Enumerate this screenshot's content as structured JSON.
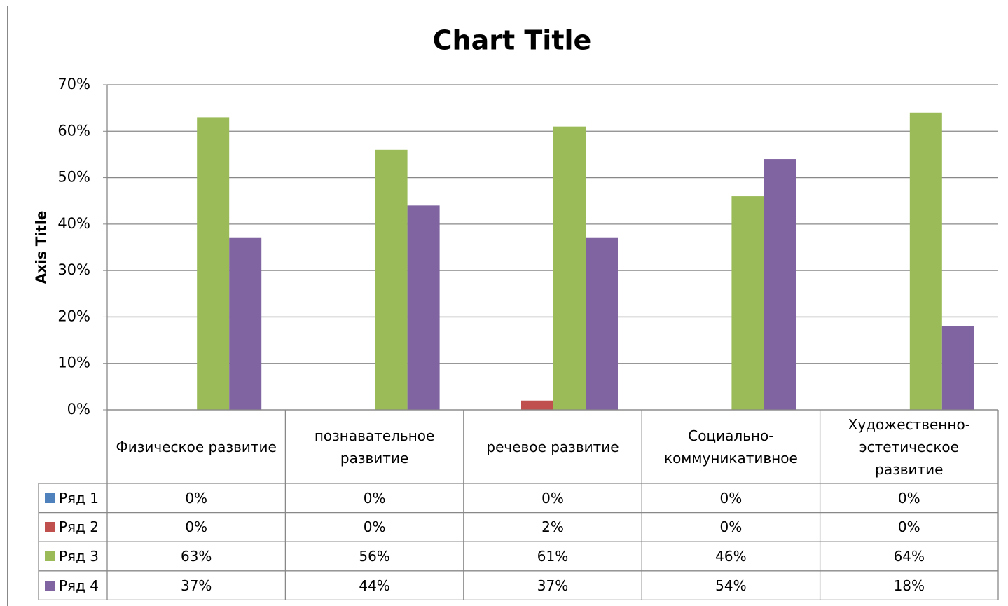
{
  "chart_data": {
    "type": "bar",
    "title": "Chart Title",
    "y_label": "Axis Title",
    "categories": [
      "Физическое развитие",
      "познавательное развитие",
      "речевое развитие",
      "Социально-коммуникативное",
      "Художественно-эстетическое развитие"
    ],
    "series": [
      {
        "name": "Ряд 1",
        "color": "#4f81bd",
        "values": [
          0,
          0,
          0,
          0,
          0
        ],
        "value_labels": [
          "0%",
          "0%",
          "0%",
          "0%",
          "0%"
        ]
      },
      {
        "name": "Ряд 2",
        "color": "#c0504d",
        "values": [
          0,
          0,
          2,
          0,
          0
        ],
        "value_labels": [
          "0%",
          "0%",
          "2%",
          "0%",
          "0%"
        ]
      },
      {
        "name": "Ряд 3",
        "color": "#9bbb59",
        "values": [
          63,
          56,
          61,
          46,
          64
        ],
        "value_labels": [
          "63%",
          "56%",
          "61%",
          "46%",
          "64%"
        ]
      },
      {
        "name": "Ряд 4",
        "color": "#8064a2",
        "values": [
          37,
          44,
          37,
          54,
          18
        ],
        "value_labels": [
          "37%",
          "44%",
          "37%",
          "54%",
          "18%"
        ]
      }
    ],
    "ylim": [
      0,
      70
    ],
    "yticks": [
      {
        "value": 0,
        "label": "0%"
      },
      {
        "value": 10,
        "label": "10%"
      },
      {
        "value": 20,
        "label": "20%"
      },
      {
        "value": 30,
        "label": "30%"
      },
      {
        "value": 40,
        "label": "40%"
      },
      {
        "value": 50,
        "label": "50%"
      },
      {
        "value": 60,
        "label": "60%"
      },
      {
        "value": 70,
        "label": "70%"
      }
    ],
    "grid": true
  }
}
